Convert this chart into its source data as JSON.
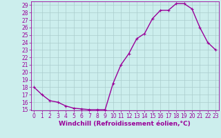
{
  "x": [
    0,
    1,
    2,
    3,
    4,
    5,
    6,
    7,
    8,
    9,
    10,
    11,
    12,
    13,
    14,
    15,
    16,
    17,
    18,
    19,
    20,
    21,
    22,
    23
  ],
  "y": [
    18,
    17,
    16.2,
    16,
    15.5,
    15.2,
    15.1,
    15.0,
    15.0,
    15.0,
    18.5,
    21.0,
    22.5,
    24.5,
    25.2,
    27.2,
    28.3,
    28.3,
    29.2,
    29.2,
    28.5,
    26.0,
    24.0,
    23.0
  ],
  "line_color": "#990099",
  "marker": "+",
  "marker_size": 3,
  "marker_linewidth": 0.8,
  "bg_color": "#cceeed",
  "grid_color": "#aacccc",
  "xlabel": "Windchill (Refroidissement éolien,°C)",
  "ylabel": "",
  "ylim_min": 15,
  "ylim_max": 29,
  "xlim_min": 0,
  "xlim_max": 23,
  "yticks": [
    15,
    16,
    17,
    18,
    19,
    20,
    21,
    22,
    23,
    24,
    25,
    26,
    27,
    28,
    29
  ],
  "xticks": [
    0,
    1,
    2,
    3,
    4,
    5,
    6,
    7,
    8,
    9,
    10,
    11,
    12,
    13,
    14,
    15,
    16,
    17,
    18,
    19,
    20,
    21,
    22,
    23
  ],
  "tick_color": "#990099",
  "label_fontsize": 5.5,
  "xlabel_fontsize": 6.5,
  "line_width": 1.0
}
